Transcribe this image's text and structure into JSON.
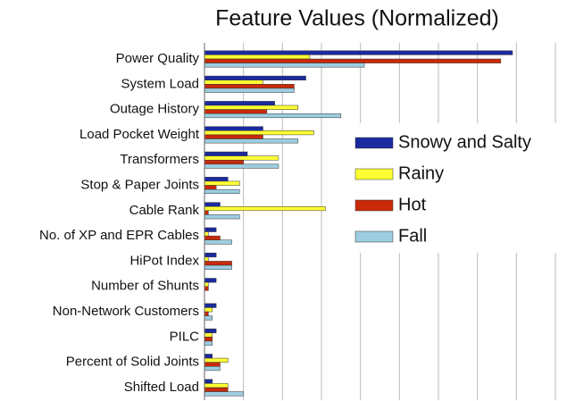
{
  "chart_data": {
    "type": "barh",
    "title": "Feature Values (Normalized)",
    "categories": [
      "Power Quality",
      "System Load",
      "Outage History",
      "Load Pocket Weight",
      "Transformers",
      "Stop & Paper Joints",
      "Cable Rank",
      "No. of XP and EPR Cables",
      "HiPot Index",
      "Number of Shunts",
      "Non-Network Customers",
      "PILC",
      "Percent of Solid Joints",
      "Shifted Load"
    ],
    "series": [
      {
        "name": "Snowy and Salty",
        "color": "#1b2a9e",
        "values": [
          0.79,
          0.26,
          0.18,
          0.15,
          0.11,
          0.06,
          0.04,
          0.03,
          0.03,
          0.03,
          0.03,
          0.03,
          0.02,
          0.02
        ]
      },
      {
        "name": "Rainy",
        "color": "#ffff33",
        "values": [
          0.27,
          0.15,
          0.24,
          0.28,
          0.19,
          0.09,
          0.31,
          0.01,
          0.01,
          0.01,
          0.02,
          0.02,
          0.06,
          0.06
        ]
      },
      {
        "name": "Hot",
        "color": "#c82a0a",
        "values": [
          0.76,
          0.23,
          0.16,
          0.15,
          0.1,
          0.03,
          0.01,
          0.04,
          0.07,
          0.01,
          0.01,
          0.02,
          0.04,
          0.06
        ]
      },
      {
        "name": "Fall",
        "color": "#9dcde0",
        "values": [
          0.41,
          0.23,
          0.35,
          0.24,
          0.19,
          0.09,
          0.09,
          0.07,
          0.07,
          0.0,
          0.02,
          0.02,
          0.04,
          0.1
        ]
      }
    ],
    "xlim": [
      0,
      0.9
    ],
    "xticks": [
      0,
      0.1,
      0.2,
      0.3,
      0.4,
      0.5,
      0.6,
      0.7,
      0.8,
      0.9
    ],
    "grid": true,
    "legend": "right"
  }
}
